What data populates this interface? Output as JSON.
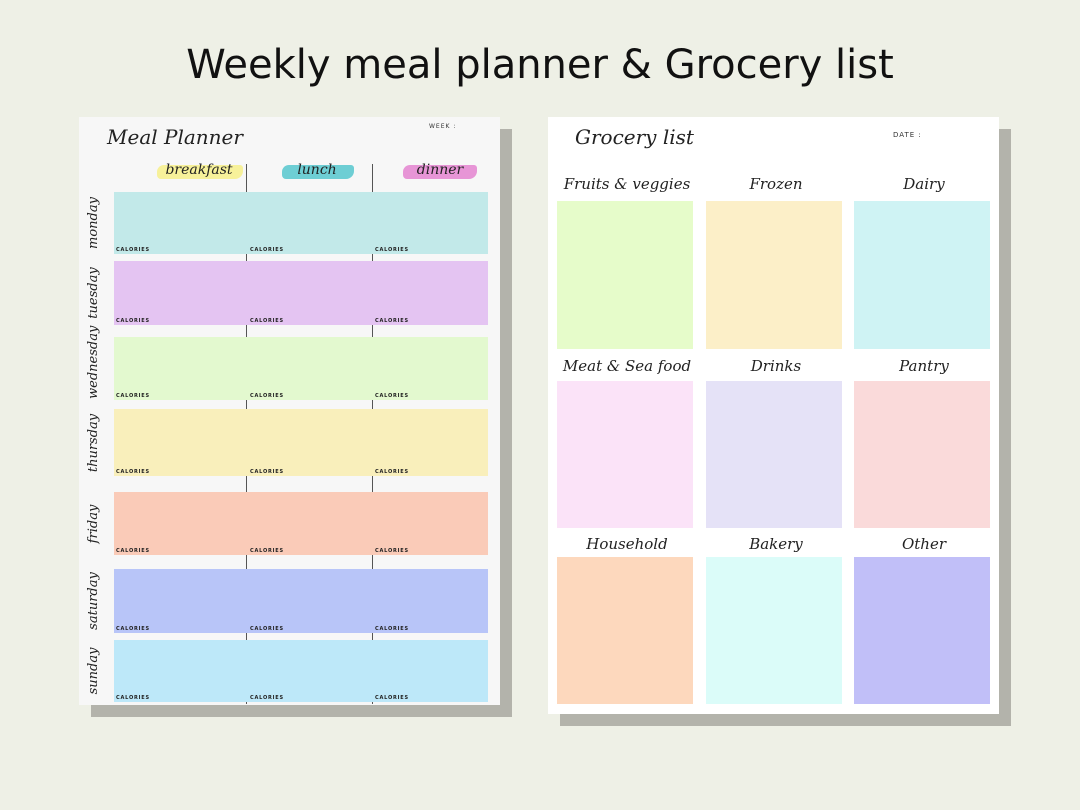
{
  "title": "Weekly meal planner & Grocery list",
  "meal_planner": {
    "title": "Meal Planner",
    "week_label": "WEEK :",
    "calories_label": "CALORIES",
    "columns": [
      {
        "label": "breakfast",
        "brush_color": "#f6ef8f"
      },
      {
        "label": "lunch",
        "brush_color": "#5ec9cf"
      },
      {
        "label": "dinner",
        "brush_color": "#e48ad2"
      }
    ],
    "days": [
      {
        "label": "monday",
        "color": "#c2e9e9"
      },
      {
        "label": "tuesday",
        "color": "#e4c4f2"
      },
      {
        "label": "wednesday",
        "color": "#e3f9cf"
      },
      {
        "label": "thursday",
        "color": "#f9efbb"
      },
      {
        "label": "friday",
        "color": "#facbb8"
      },
      {
        "label": "saturday",
        "color": "#b8c5f8"
      },
      {
        "label": "sunday",
        "color": "#bde8f9"
      }
    ]
  },
  "grocery_list": {
    "title": "Grocery list",
    "date_label": "DATE :",
    "categories": [
      {
        "label": "Fruits & veggies",
        "color": "#e6fcca"
      },
      {
        "label": "Frozen",
        "color": "#fcefc8"
      },
      {
        "label": "Dairy",
        "color": "#cff3f4"
      },
      {
        "label": "Meat & Sea food",
        "color": "#fbe3f8"
      },
      {
        "label": "Drinks",
        "color": "#e5e2f7"
      },
      {
        "label": "Pantry",
        "color": "#fadada"
      },
      {
        "label": "Household",
        "color": "#fdd8bd"
      },
      {
        "label": "Bakery",
        "color": "#dbfcf9"
      },
      {
        "label": "Other",
        "color": "#c1bff8"
      }
    ]
  }
}
